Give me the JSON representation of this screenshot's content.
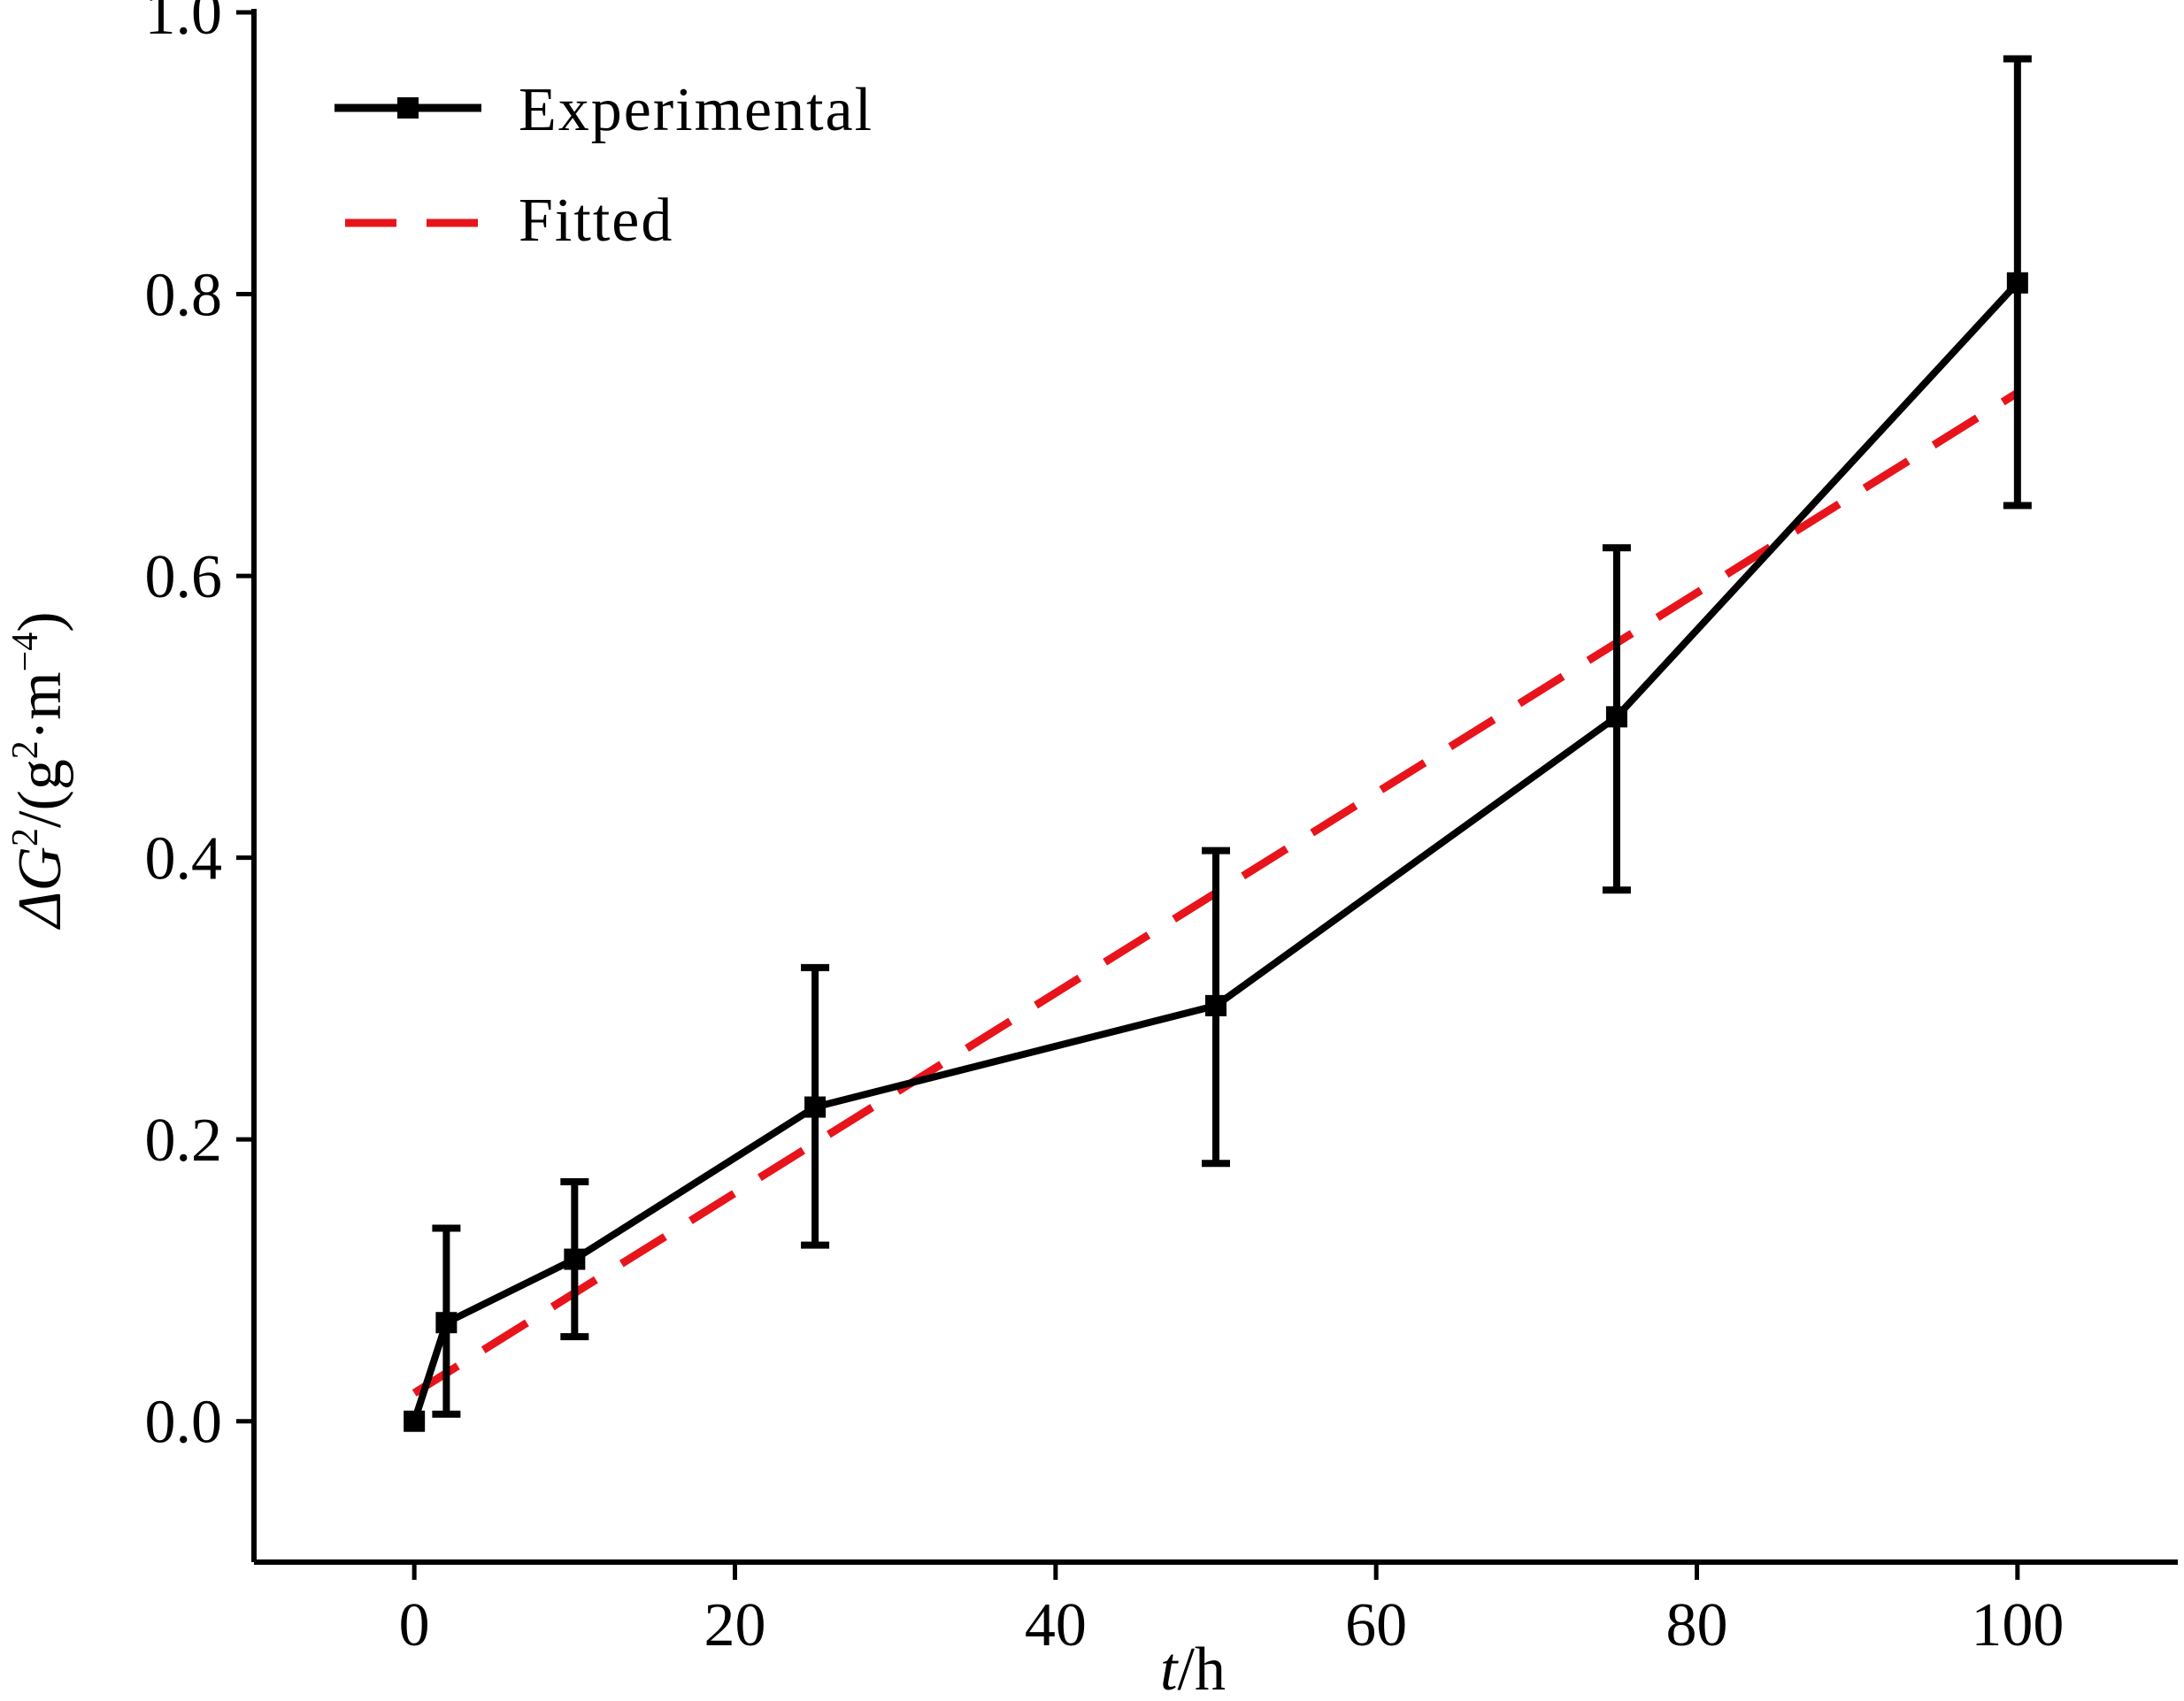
{
  "chart_data": {
    "type": "line",
    "title": "",
    "xlabel": {
      "italic": "t",
      "rest": "/h"
    },
    "ylabel": {
      "main": "ΔG",
      "sup1": "2",
      "mid": "/(g",
      "sup2": "2",
      "dot": "·",
      "unit": "m",
      "sup3": "−4",
      "end": ")"
    },
    "xlim": [
      -10,
      110
    ],
    "ylim": [
      -0.1,
      1.0
    ],
    "xticks": [
      0,
      20,
      40,
      60,
      80,
      100
    ],
    "xtick_labels": [
      "0",
      "20",
      "40",
      "60",
      "80",
      "100"
    ],
    "yticks": [
      0.0,
      0.2,
      0.4,
      0.6,
      0.8,
      1.0
    ],
    "ytick_labels": [
      "0.0",
      "0.2",
      "0.4",
      "0.6",
      "0.8",
      "1.0"
    ],
    "grid": false,
    "legend_position": "top-left",
    "series": [
      {
        "name": "Experimental",
        "style": "solid-square-markers",
        "color": "#000000",
        "x": [
          0,
          2,
          10,
          25,
          50,
          75,
          100
        ],
        "y": [
          0.0,
          0.07,
          0.115,
          0.223,
          0.295,
          0.5,
          0.808
        ],
        "error_low": [
          null,
          0.005,
          0.06,
          0.125,
          0.183,
          0.377,
          0.65
        ],
        "error_high": [
          null,
          0.137,
          0.17,
          0.322,
          0.405,
          0.62,
          0.967
        ]
      },
      {
        "name": "Fitted",
        "style": "dashed",
        "color": "#e8141b",
        "x": [
          0,
          100
        ],
        "y": [
          0.02,
          0.73
        ]
      }
    ]
  }
}
